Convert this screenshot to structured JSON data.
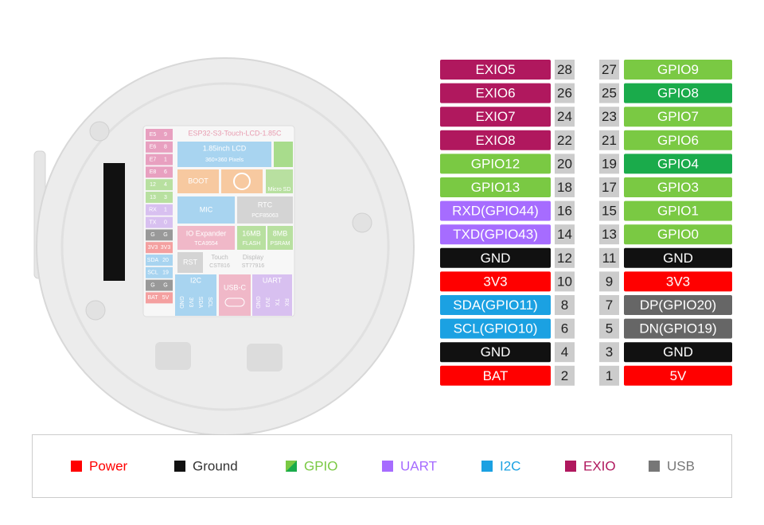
{
  "board": {
    "title": "ESP32-S3-Touch-LCD-1.85C",
    "pins": [
      [
        "E5",
        "9"
      ],
      [
        "E6",
        "8"
      ],
      [
        "E7",
        "1"
      ],
      [
        "E8",
        "6"
      ],
      [
        "12",
        "4"
      ],
      [
        "13",
        "3"
      ],
      [
        "RX",
        "1"
      ],
      [
        "TX",
        "0"
      ],
      [
        "G",
        "G"
      ],
      [
        "3V3",
        "3V3"
      ],
      [
        "SDA",
        "20"
      ],
      [
        "SCL",
        "19"
      ],
      [
        "G",
        "G"
      ],
      [
        "BAT",
        "5V"
      ]
    ],
    "labels": [
      "1.85inch LCD",
      "360×360 Pixels",
      "BOOT",
      "Micro SD",
      "MIC",
      "RTC",
      "PCF85063",
      "IO Expander",
      "TCA9554",
      "16MB",
      "FLASH",
      "8MB",
      "PSRAM",
      "RST",
      "Touch",
      "CST816",
      "Display",
      "ST77916",
      "I2C",
      "USB-C",
      "UART",
      "GND",
      "3V3",
      "SDA",
      "SCL",
      "GND",
      "3V3",
      "TX",
      "RX"
    ]
  },
  "pins": {
    "rows": [
      {
        "left": {
          "label": "EXIO5",
          "number": 28,
          "color": "#b0185e"
        },
        "right": {
          "number": 27,
          "label": "GPIO9",
          "color": "#7ac943"
        }
      },
      {
        "left": {
          "label": "EXIO6",
          "number": 26,
          "color": "#b0185e"
        },
        "right": {
          "number": 25,
          "label": "GPIO8",
          "color": "#1aab4b"
        }
      },
      {
        "left": {
          "label": "EXIO7",
          "number": 24,
          "color": "#b0185e"
        },
        "right": {
          "number": 23,
          "label": "GPIO7",
          "color": "#7ac943"
        }
      },
      {
        "left": {
          "label": "EXIO8",
          "number": 22,
          "color": "#b0185e"
        },
        "right": {
          "number": 21,
          "label": "GPIO6",
          "color": "#7ac943"
        }
      },
      {
        "left": {
          "label": "GPIO12",
          "number": 20,
          "color": "#7ac943"
        },
        "right": {
          "number": 19,
          "label": "GPIO4",
          "color": "#1aab4b"
        }
      },
      {
        "left": {
          "label": "GPIO13",
          "number": 18,
          "color": "#7ac943"
        },
        "right": {
          "number": 17,
          "label": "GPIO3",
          "color": "#7ac943"
        }
      },
      {
        "left": {
          "label": "RXD(GPIO44)",
          "number": 16,
          "color": "#a66cff"
        },
        "right": {
          "number": 15,
          "label": "GPIO1",
          "color": "#7ac943"
        }
      },
      {
        "left": {
          "label": "TXD(GPIO43)",
          "number": 14,
          "color": "#a66cff"
        },
        "right": {
          "number": 13,
          "label": "GPIO0",
          "color": "#7ac943"
        }
      },
      {
        "left": {
          "label": "GND",
          "number": 12,
          "color": "#111111"
        },
        "right": {
          "number": 11,
          "label": "GND",
          "color": "#111111"
        }
      },
      {
        "left": {
          "label": "3V3",
          "number": 10,
          "color": "#ff0000"
        },
        "right": {
          "number": 9,
          "label": "3V3",
          "color": "#ff0000"
        }
      },
      {
        "left": {
          "label": "SDA(GPIO11)",
          "number": 8,
          "color": "#1ba1e2"
        },
        "right": {
          "number": 7,
          "label": "DP(GPIO20)",
          "color": "#666666"
        }
      },
      {
        "left": {
          "label": "SCL(GPIO10)",
          "number": 6,
          "color": "#1ba1e2"
        },
        "right": {
          "number": 5,
          "label": "DN(GPIO19)",
          "color": "#666666"
        }
      },
      {
        "left": {
          "label": "GND",
          "number": 4,
          "color": "#111111"
        },
        "right": {
          "number": 3,
          "label": "GND",
          "color": "#111111"
        }
      },
      {
        "left": {
          "label": "BAT",
          "number": 2,
          "color": "#ff0000"
        },
        "right": {
          "number": 1,
          "label": "5V",
          "color": "#ff0000"
        }
      }
    ]
  },
  "legend": [
    {
      "label": "Power",
      "color": "#ff0000"
    },
    {
      "label": "Ground",
      "color": "#111111"
    },
    {
      "label": "GPIO",
      "color": "#7ac943"
    },
    {
      "label": "UART",
      "color": "#a66cff"
    },
    {
      "label": "I2C",
      "color": "#1ba1e2"
    },
    {
      "label": "EXIO",
      "color": "#b0185e"
    },
    {
      "label": "USB",
      "color": "#777777"
    }
  ]
}
